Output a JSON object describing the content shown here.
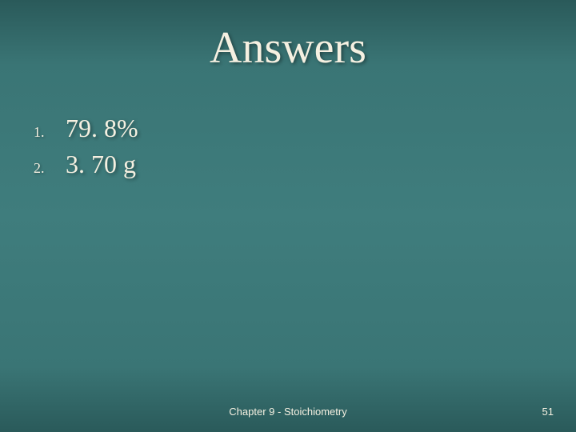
{
  "slide": {
    "title": "Answers",
    "background_gradient": [
      "#2a5a5a",
      "#3a7575",
      "#3f7d7d"
    ],
    "title_color": "#f5f0e1",
    "title_fontsize": 56,
    "text_color": "#f5f0e1",
    "text_fontsize": 32,
    "number_fontsize": 18,
    "font_family": "Georgia"
  },
  "answers": [
    {
      "number": "1.",
      "text": "79. 8%"
    },
    {
      "number": "2.",
      "text": "3. 70 g"
    }
  ],
  "footer": {
    "center": "Chapter 9 - Stoichiometry",
    "page_number": "51",
    "fontsize": 13
  }
}
